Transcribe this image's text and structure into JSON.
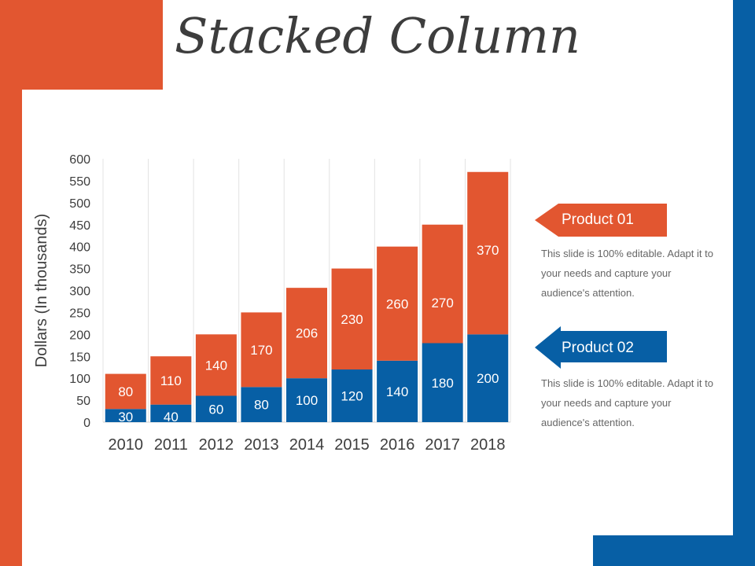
{
  "title": "Stacked Column",
  "colors": {
    "orange": "#e25630",
    "blue": "#075fa5",
    "text": "#3d3d3d"
  },
  "chart_data": {
    "type": "bar",
    "stacked": true,
    "title": "",
    "xlabel": "",
    "ylabel": "Dollars (In thousands)",
    "ylim": [
      0,
      600
    ],
    "yticks": [
      0,
      50,
      100,
      150,
      200,
      250,
      300,
      350,
      400,
      450,
      500,
      550,
      600
    ],
    "grid": "vertical",
    "categories": [
      "2010",
      "2011",
      "2012",
      "2013",
      "2014",
      "2015",
      "2016",
      "2017",
      "2018"
    ],
    "series": [
      {
        "name": "Product 02",
        "color": "#075fa5",
        "values": [
          30,
          40,
          60,
          80,
          100,
          120,
          140,
          180,
          200
        ]
      },
      {
        "name": "Product 01",
        "color": "#e25630",
        "values": [
          80,
          110,
          140,
          170,
          206,
          230,
          260,
          270,
          370
        ]
      }
    ]
  },
  "legend": [
    {
      "label": "Product 01",
      "description": "This slide is 100% editable. Adapt it to your needs and capture your audience's attention."
    },
    {
      "label": "Product 02",
      "description": "This slide is 100% editable. Adapt it to your needs and capture your audience's attention."
    }
  ]
}
